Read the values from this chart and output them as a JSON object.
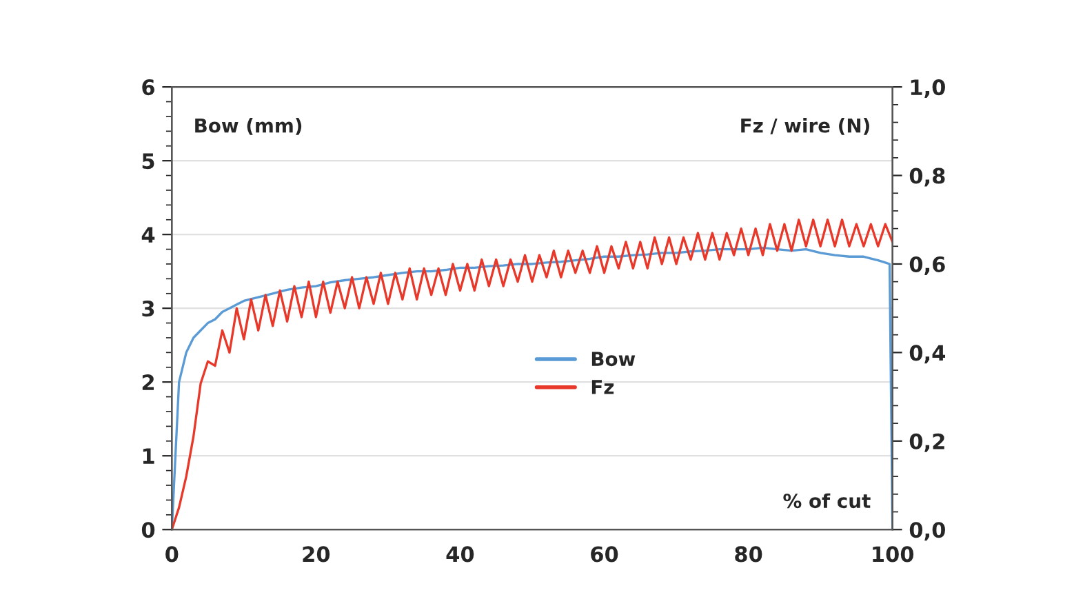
{
  "chart_data": {
    "type": "line",
    "xlabel": "% of cut",
    "ylabel": "Bow (mm)",
    "y2label": "Fz / wire (N)",
    "xlim": [
      0,
      100
    ],
    "xticks": [
      0,
      20,
      40,
      60,
      80,
      100
    ],
    "ylim": [
      0,
      6
    ],
    "yticks": [
      0,
      1,
      2,
      3,
      4,
      5,
      6
    ],
    "y2lim": [
      0,
      1.0
    ],
    "y2ticks": [
      {
        "value": 0,
        "label": "0,0"
      },
      {
        "value": 0.2,
        "label": "0,2"
      },
      {
        "value": 0.4,
        "label": "0,4"
      },
      {
        "value": 0.6,
        "label": "0,6"
      },
      {
        "value": 0.8,
        "label": "0,8"
      },
      {
        "value": 1.0,
        "label": "1,0"
      }
    ],
    "grid": "y",
    "legend": "center",
    "marker": "none",
    "line_style": "solid",
    "series": [
      {
        "name": "Bow",
        "color": "#5b9bd5",
        "x": [
          0,
          0.5,
          1,
          1.5,
          2,
          3,
          4,
          5,
          6,
          7,
          8,
          9,
          10,
          12,
          14,
          16,
          18,
          20,
          22,
          24,
          26,
          28,
          30,
          32,
          34,
          36,
          38,
          40,
          42,
          44,
          46,
          48,
          50,
          52,
          54,
          56,
          58,
          60,
          62,
          64,
          66,
          68,
          70,
          72,
          74,
          76,
          78,
          80,
          82,
          84,
          86,
          88,
          90,
          92,
          94,
          96,
          98,
          99,
          99.6,
          100
        ],
        "values": [
          0,
          1.0,
          2.0,
          2.2,
          2.4,
          2.6,
          2.7,
          2.8,
          2.85,
          2.95,
          3.0,
          3.05,
          3.1,
          3.15,
          3.2,
          3.25,
          3.28,
          3.3,
          3.35,
          3.38,
          3.4,
          3.42,
          3.45,
          3.48,
          3.5,
          3.5,
          3.52,
          3.55,
          3.55,
          3.57,
          3.58,
          3.6,
          3.6,
          3.62,
          3.63,
          3.65,
          3.67,
          3.7,
          3.7,
          3.72,
          3.73,
          3.75,
          3.75,
          3.77,
          3.78,
          3.8,
          3.8,
          3.8,
          3.82,
          3.8,
          3.78,
          3.8,
          3.75,
          3.72,
          3.7,
          3.7,
          3.65,
          3.62,
          3.6,
          0
        ]
      },
      {
        "name": "Fz",
        "color": "#e8382a",
        "axis": "y2",
        "x": [
          0,
          1,
          2,
          3,
          4,
          5,
          6,
          7,
          8,
          9,
          10,
          11,
          12,
          13,
          14,
          15,
          16,
          17,
          18,
          19,
          20,
          21,
          22,
          23,
          24,
          25,
          26,
          27,
          28,
          29,
          30,
          31,
          32,
          33,
          34,
          35,
          36,
          37,
          38,
          39,
          40,
          41,
          42,
          43,
          44,
          45,
          46,
          47,
          48,
          49,
          50,
          51,
          52,
          53,
          54,
          55,
          56,
          57,
          58,
          59,
          60,
          61,
          62,
          63,
          64,
          65,
          66,
          67,
          68,
          69,
          70,
          71,
          72,
          73,
          74,
          75,
          76,
          77,
          78,
          79,
          80,
          81,
          82,
          83,
          84,
          85,
          86,
          87,
          88,
          89,
          90,
          91,
          92,
          93,
          94,
          95,
          96,
          97,
          98,
          99,
          100
        ],
        "values": [
          0,
          0.05,
          0.12,
          0.21,
          0.33,
          0.38,
          0.37,
          0.45,
          0.4,
          0.5,
          0.43,
          0.52,
          0.45,
          0.53,
          0.46,
          0.54,
          0.47,
          0.55,
          0.48,
          0.56,
          0.48,
          0.56,
          0.49,
          0.56,
          0.5,
          0.57,
          0.5,
          0.57,
          0.51,
          0.58,
          0.51,
          0.58,
          0.52,
          0.59,
          0.52,
          0.59,
          0.53,
          0.59,
          0.53,
          0.6,
          0.54,
          0.6,
          0.54,
          0.61,
          0.55,
          0.61,
          0.55,
          0.61,
          0.56,
          0.62,
          0.56,
          0.62,
          0.57,
          0.63,
          0.57,
          0.63,
          0.58,
          0.63,
          0.58,
          0.64,
          0.58,
          0.64,
          0.59,
          0.65,
          0.59,
          0.65,
          0.59,
          0.66,
          0.6,
          0.66,
          0.6,
          0.66,
          0.61,
          0.67,
          0.61,
          0.67,
          0.61,
          0.67,
          0.62,
          0.68,
          0.62,
          0.68,
          0.62,
          0.69,
          0.63,
          0.69,
          0.63,
          0.7,
          0.64,
          0.7,
          0.64,
          0.7,
          0.64,
          0.7,
          0.64,
          0.69,
          0.64,
          0.69,
          0.64,
          0.69,
          0.65
        ]
      }
    ]
  }
}
